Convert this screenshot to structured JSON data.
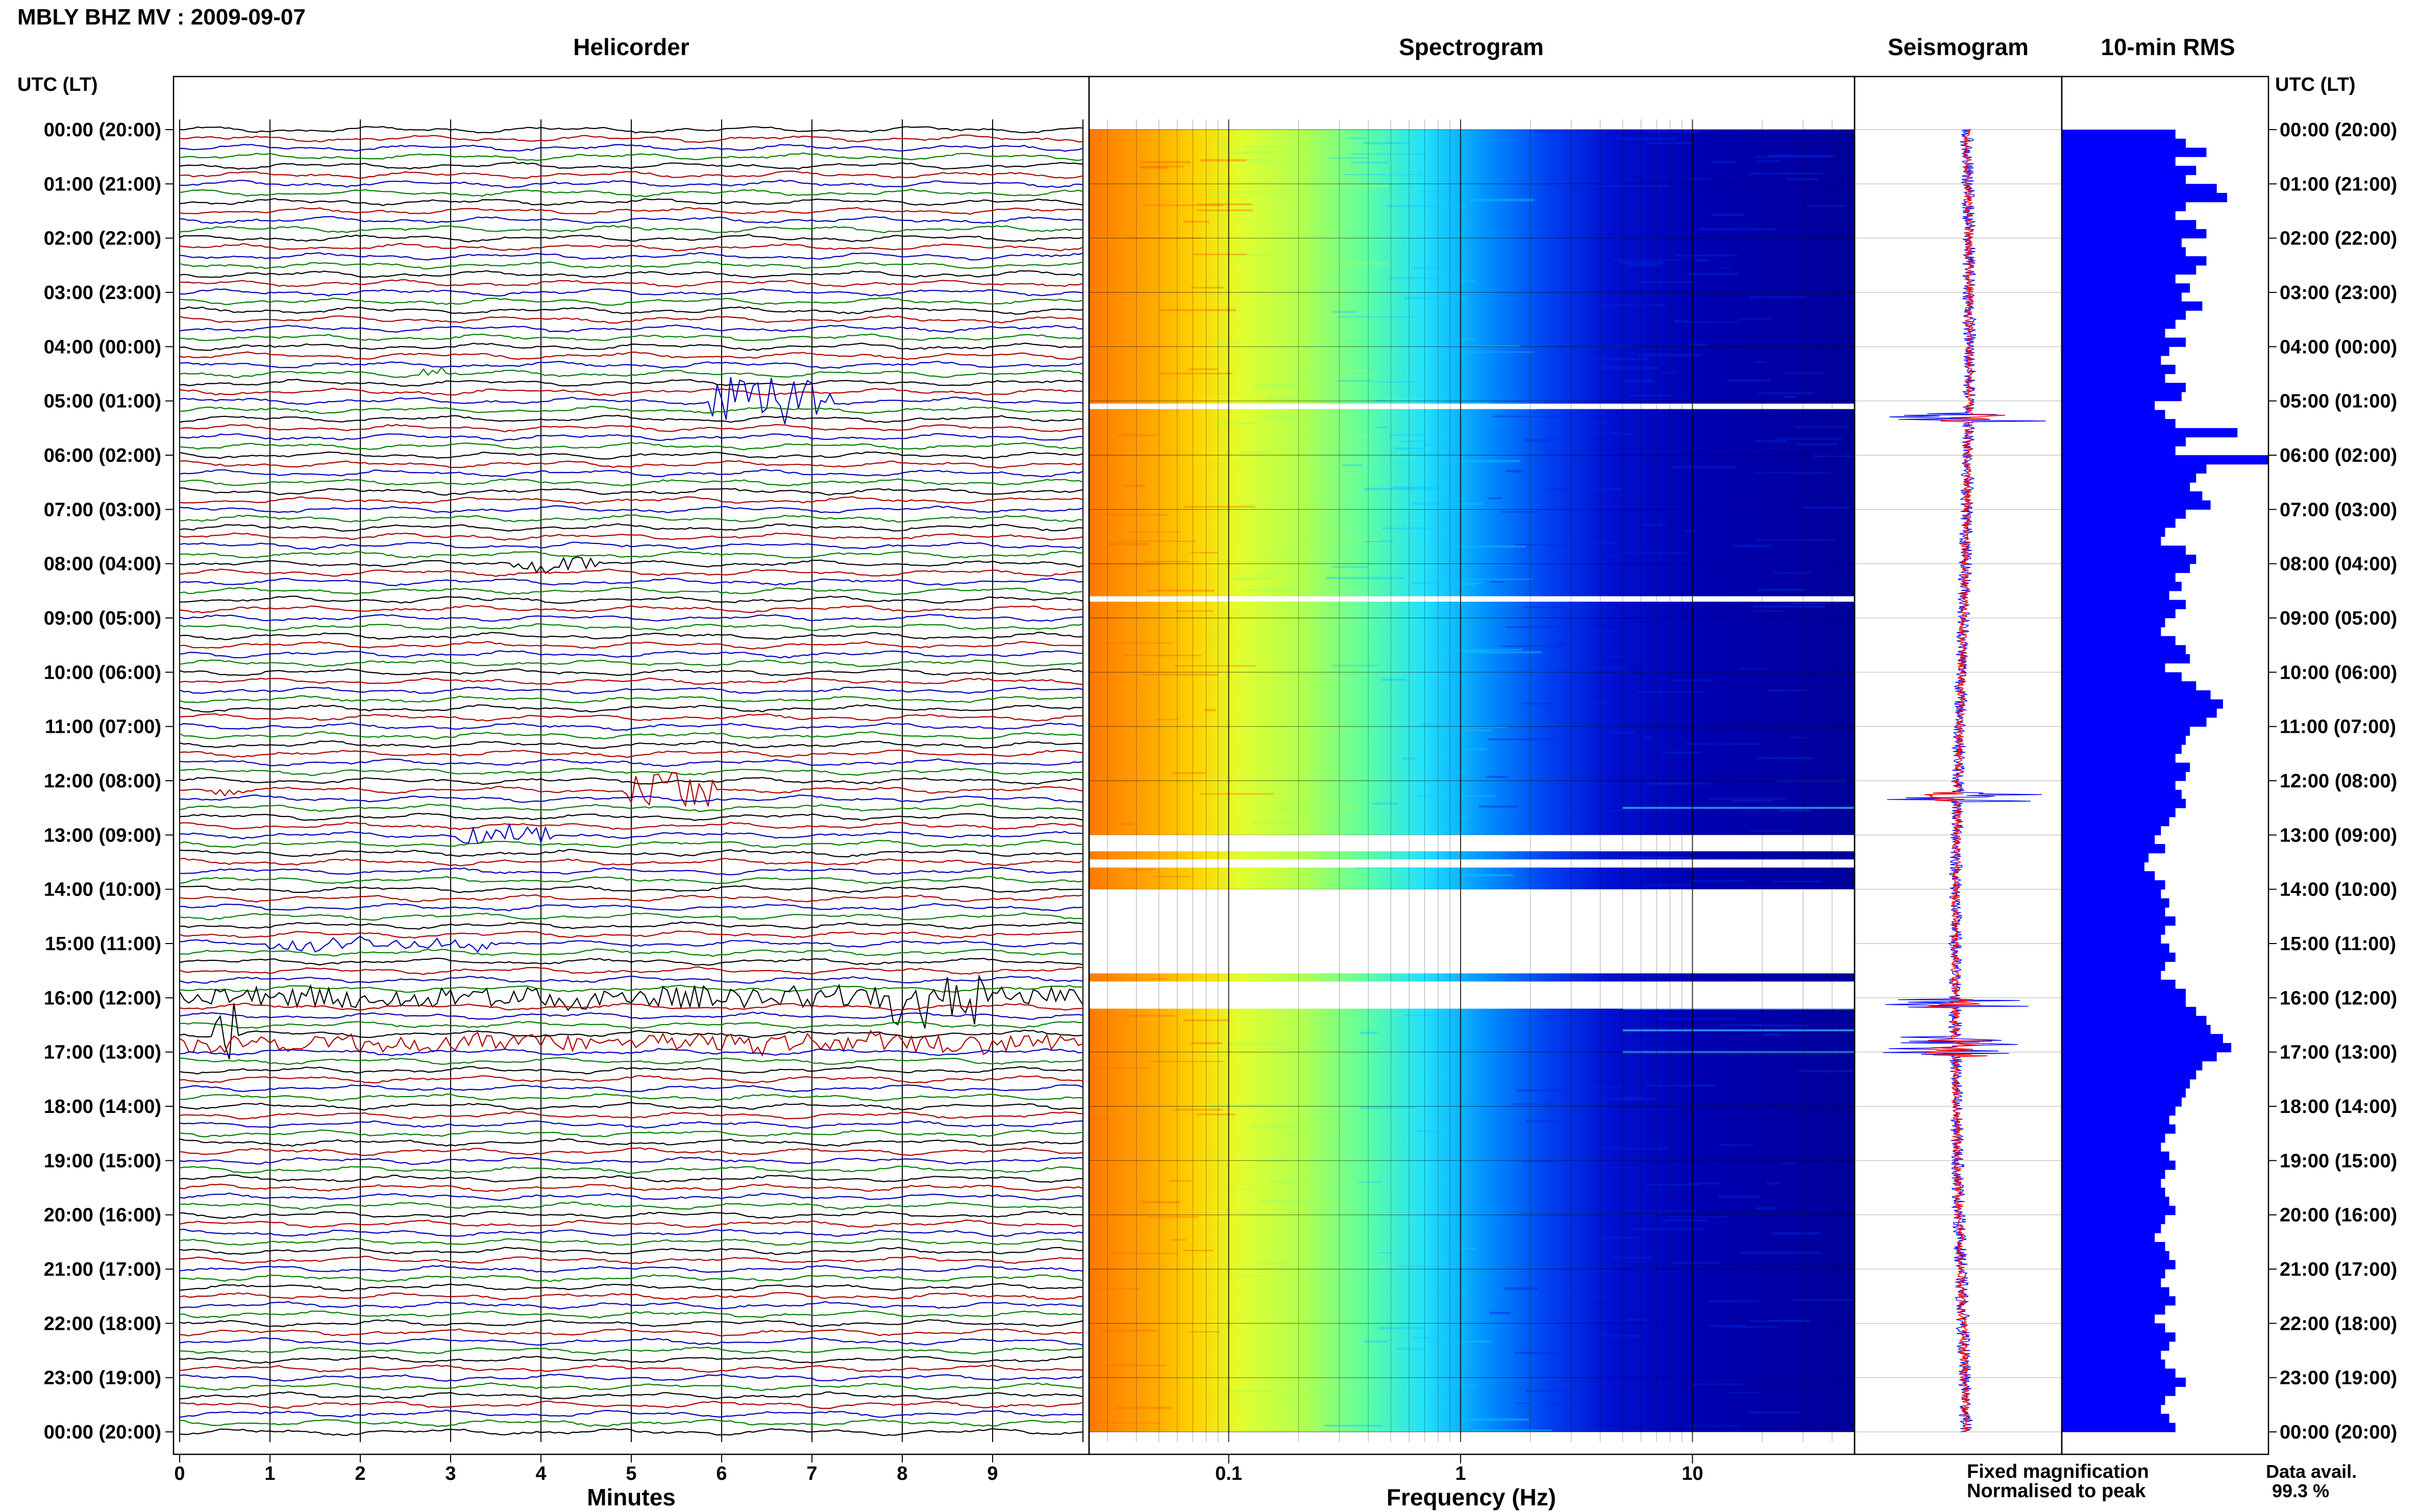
{
  "header": {
    "title": "MBLY BHZ MV : 2009-09-07",
    "time_label_left": "UTC (LT)",
    "time_label_right": "UTC (LT)"
  },
  "legend": {
    "fixed_label": "Fixed magnification",
    "normalised_label": "Normalised to peak",
    "fixed_color": "#0000ff",
    "normalised_color": "#ff0000"
  },
  "data_availability": {
    "label": "Data avail.",
    "value": "99.3 %"
  },
  "time_rows": [
    "00:00 (20:00)",
    "01:00 (21:00)",
    "02:00 (22:00)",
    "03:00 (23:00)",
    "04:00 (00:00)",
    "05:00 (01:00)",
    "06:00 (02:00)",
    "07:00 (03:00)",
    "08:00 (04:00)",
    "09:00 (05:00)",
    "10:00 (06:00)",
    "11:00 (07:00)",
    "12:00 (08:00)",
    "13:00 (09:00)",
    "14:00 (10:00)",
    "15:00 (11:00)",
    "16:00 (12:00)",
    "17:00 (13:00)",
    "18:00 (14:00)",
    "19:00 (15:00)",
    "20:00 (16:00)",
    "21:00 (17:00)",
    "22:00 (18:00)",
    "23:00 (19:00)",
    "00:00 (20:00)"
  ],
  "chart_data": [
    {
      "type": "line",
      "title": "Helicorder",
      "xlabel": "Minutes",
      "x_ticks": [
        "0",
        "1",
        "2",
        "3",
        "4",
        "5",
        "6",
        "7",
        "8",
        "9"
      ],
      "xlim": [
        0,
        10
      ],
      "lines_per_hour": 6,
      "trace_colors": [
        "#000000",
        "#b00000",
        "#0000c0",
        "#008000"
      ],
      "events": [
        {
          "hour": 4.5,
          "minute_start": 2.7,
          "minute_end": 2.9,
          "amplitude": 0.4
        },
        {
          "hour": 5.0,
          "minute_start": 5.9,
          "minute_end": 7.2,
          "amplitude": 1.6
        },
        {
          "hour": 8.0,
          "minute_start": 3.7,
          "minute_end": 4.6,
          "amplitude": 0.5
        },
        {
          "hour": 12.1,
          "minute_start": 4.9,
          "minute_end": 5.9,
          "amplitude": 1.4
        },
        {
          "hour": 12.2,
          "minute_start": 0.4,
          "minute_end": 0.7,
          "amplitude": 0.5
        },
        {
          "hour": 13.0,
          "minute_start": 3.1,
          "minute_end": 4.1,
          "amplitude": 0.5
        },
        {
          "hour": 15.0,
          "minute_start": 1.0,
          "minute_end": 3.5,
          "amplitude": 0.4
        },
        {
          "hour": 16.0,
          "minute_start": 0.0,
          "minute_end": 10.0,
          "amplitude": 0.7
        },
        {
          "hour": 16.0,
          "minute_start": 7.9,
          "minute_end": 8.9,
          "amplitude": 1.4
        },
        {
          "hour": 16.7,
          "minute_start": 0.4,
          "minute_end": 0.7,
          "amplitude": 2.2
        },
        {
          "hour": 16.8,
          "minute_start": 0.0,
          "minute_end": 10.0,
          "amplitude": 0.6
        }
      ]
    },
    {
      "type": "heatmap",
      "title": "Spectrogram",
      "xlabel": "Frequency (Hz)",
      "x_scale": "log",
      "xlim": [
        0.025,
        50
      ],
      "x_ticks": [
        0.1,
        1,
        10
      ],
      "x_tick_labels": [
        "0.1",
        "1",
        "10"
      ],
      "gap_hours": [
        5.05,
        5.15,
        8.6,
        8.7,
        13.0,
        13.3,
        13.45,
        13.6,
        14.0,
        15.55,
        15.7,
        16.2
      ],
      "colormap": [
        "#00007f",
        "#0000ff",
        "#00bfff",
        "#40ffbf",
        "#c0ff40",
        "#ffd000",
        "#ff8000"
      ]
    },
    {
      "type": "line",
      "title": "Seismogram",
      "series": [
        {
          "name": "Fixed magnification",
          "color": "#0000ff"
        },
        {
          "name": "Normalised to peak",
          "color": "#ff0000"
        }
      ],
      "spikes_hours": [
        5.3,
        12.3,
        16.1,
        16.8,
        17.0
      ]
    },
    {
      "type": "bar",
      "title": "10-min RMS",
      "orientation": "horizontal",
      "color": "#0000ff",
      "values": [
        0.55,
        0.6,
        0.7,
        0.55,
        0.65,
        0.6,
        0.75,
        0.8,
        0.6,
        0.55,
        0.65,
        0.7,
        0.58,
        0.6,
        0.7,
        0.65,
        0.55,
        0.62,
        0.58,
        0.68,
        0.6,
        0.55,
        0.5,
        0.6,
        0.52,
        0.48,
        0.55,
        0.5,
        0.6,
        0.58,
        0.45,
        0.5,
        0.55,
        0.85,
        0.6,
        0.55,
        1.0,
        0.7,
        0.65,
        0.62,
        0.68,
        0.72,
        0.6,
        0.55,
        0.5,
        0.48,
        0.6,
        0.65,
        0.62,
        0.55,
        0.58,
        0.52,
        0.6,
        0.55,
        0.5,
        0.48,
        0.55,
        0.6,
        0.62,
        0.5,
        0.58,
        0.65,
        0.72,
        0.78,
        0.75,
        0.7,
        0.62,
        0.6,
        0.58,
        0.55,
        0.62,
        0.6,
        0.55,
        0.58,
        0.6,
        0.55,
        0.52,
        0.48,
        0.45,
        0.5,
        0.42,
        0.4,
        0.45,
        0.5,
        0.48,
        0.52,
        0.5,
        0.55,
        0.5,
        0.48,
        0.52,
        0.55,
        0.5,
        0.48,
        0.55,
        0.6,
        0.6,
        0.65,
        0.7,
        0.72,
        0.78,
        0.82,
        0.75,
        0.68,
        0.65,
        0.62,
        0.6,
        0.58,
        0.55,
        0.52,
        0.55,
        0.5,
        0.48,
        0.52,
        0.55,
        0.5,
        0.48,
        0.5,
        0.52,
        0.55,
        0.5,
        0.48,
        0.45,
        0.5,
        0.52,
        0.55,
        0.5,
        0.48,
        0.52,
        0.55,
        0.5,
        0.45,
        0.5,
        0.55,
        0.52,
        0.48,
        0.5,
        0.55,
        0.6,
        0.55,
        0.5,
        0.48,
        0.52,
        0.55
      ]
    }
  ]
}
